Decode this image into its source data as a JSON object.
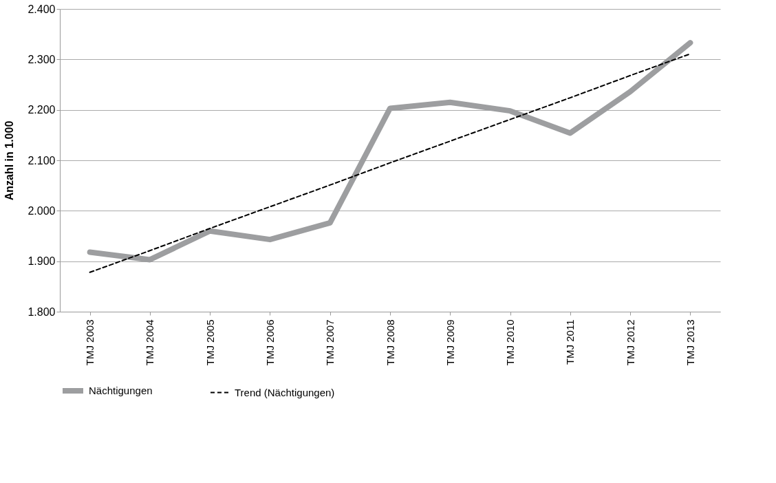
{
  "chart_data": {
    "type": "line",
    "ylabel": "Anzahl in 1.000",
    "categories": [
      "TMJ 2003",
      "TMJ 2004",
      "TMJ 2005",
      "TMJ 2006",
      "TMJ 2007",
      "TMJ 2008",
      "TMJ 2009",
      "TMJ 2010",
      "TMJ 2011",
      "TMJ 2012",
      "TMJ 2013"
    ],
    "series": [
      {
        "name": "Nächtigungen",
        "color": "#9d9ea0",
        "line_style": "solid",
        "values": [
          1918,
          1903,
          1960,
          1943,
          1976,
          2203,
          2215,
          2198,
          2154,
          2236,
          2333
        ]
      },
      {
        "name": "Trend (Nächtigungen)",
        "color": "#000000",
        "line_style": "dashed",
        "values": [
          1878,
          1921,
          1965,
          2008,
          2051,
          2095,
          2138,
          2181,
          2224,
          2268,
          2311
        ]
      }
    ],
    "ylim": [
      1800,
      2400
    ],
    "yticks": [
      {
        "value": 1800,
        "label": "1.800"
      },
      {
        "value": 1900,
        "label": "1.900"
      },
      {
        "value": 2000,
        "label": "2.000"
      },
      {
        "value": 2100,
        "label": "2.100"
      },
      {
        "value": 2200,
        "label": "2.200"
      },
      {
        "value": 2300,
        "label": "2.300"
      },
      {
        "value": 2400,
        "label": "2.400"
      }
    ],
    "grid": "y",
    "legend": "bottom",
    "marker": "none"
  }
}
